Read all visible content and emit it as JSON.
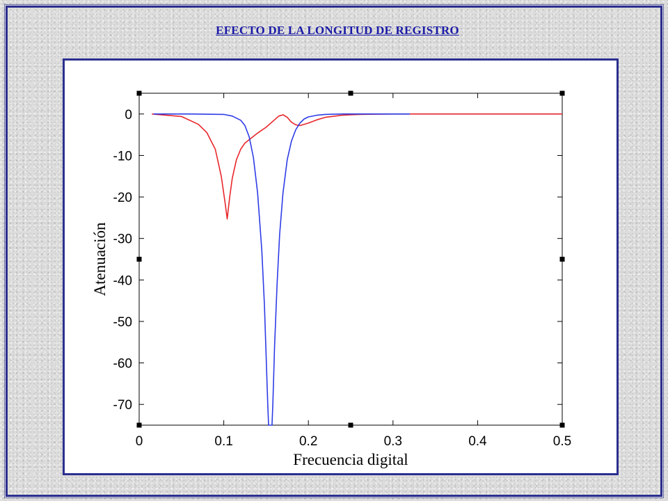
{
  "slide": {
    "title": "EFECTO DE LA LONGITUD DE REGISTRO"
  },
  "chart_data": {
    "type": "line",
    "title": "",
    "xlabel": "Frecuencia digital",
    "ylabel": "Atenuación",
    "xlim": [
      0,
      0.5
    ],
    "ylim": [
      -75,
      5
    ],
    "xticks": [
      "0",
      "0.1",
      "0.2",
      "0.3",
      "0.4",
      "0.5"
    ],
    "yticks": [
      "0",
      "-10",
      "-20",
      "-30",
      "-40",
      "-50",
      "-60",
      "-70"
    ],
    "grid": false,
    "colors": {
      "red_series": "#e8262b",
      "blue_series": "#2d3ce6"
    },
    "series": [
      {
        "color": "#e8262b",
        "x": [
          0.015,
          0.05,
          0.07,
          0.08,
          0.09,
          0.097,
          0.102,
          0.104,
          0.107,
          0.11,
          0.115,
          0.12,
          0.125,
          0.13,
          0.14,
          0.15,
          0.16,
          0.165,
          0.17,
          0.175,
          0.18,
          0.185,
          0.19,
          0.2,
          0.21,
          0.22,
          0.24,
          0.26,
          0.28,
          0.3,
          0.35,
          0.4,
          0.45,
          0.5
        ],
        "y": [
          0,
          -0.6,
          -2.5,
          -4.5,
          -8.5,
          -15,
          -22,
          -25.3,
          -20,
          -15.5,
          -11,
          -8.5,
          -7,
          -6.2,
          -4.6,
          -3.2,
          -1.4,
          -0.5,
          -0.2,
          -0.8,
          -2,
          -2.6,
          -2.8,
          -2.2,
          -1.4,
          -0.8,
          -0.3,
          -0.1,
          -0.05,
          0,
          0,
          0,
          0,
          0
        ]
      },
      {
        "color": "#2d3ce6",
        "x": [
          0.017,
          0.06,
          0.1,
          0.11,
          0.12,
          0.125,
          0.13,
          0.135,
          0.14,
          0.145,
          0.148,
          0.15,
          0.152,
          0.153,
          0.157,
          0.158,
          0.16,
          0.163,
          0.166,
          0.17,
          0.175,
          0.18,
          0.185,
          0.19,
          0.195,
          0.2,
          0.21,
          0.22,
          0.24,
          0.27,
          0.3,
          0.32
        ],
        "y": [
          0,
          0,
          -0.1,
          -0.5,
          -1.5,
          -2.8,
          -5.5,
          -10.5,
          -19,
          -33,
          -46,
          -58,
          -70,
          -75,
          -75,
          -70,
          -56,
          -41,
          -29,
          -19,
          -11,
          -6.5,
          -3.8,
          -2.2,
          -1.2,
          -0.7,
          -0.3,
          -0.1,
          0,
          0,
          0,
          0
        ]
      }
    ]
  }
}
